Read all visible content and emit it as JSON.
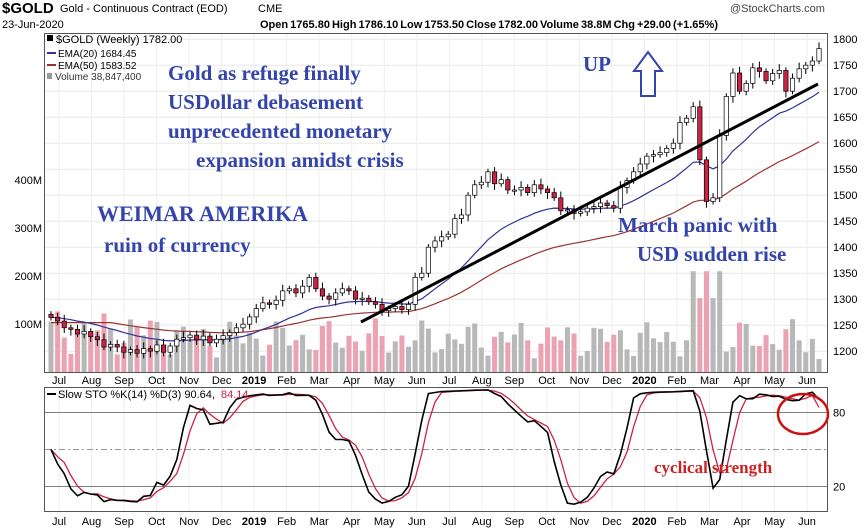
{
  "header": {
    "symbol": "$GOLD",
    "contract": "Gold - Continuous Contract (EOD)",
    "exchange": "CME",
    "date": "23-Jun-2020",
    "watermark": "@StockCharts.com",
    "ohlc": "Open 1765.80  High 1786.10  Low 1753.50  Close 1782.00  Volume 38.8M  Chg +29.00 (+1.65%)"
  },
  "legend": {
    "price": "$GOLD (Weekly) 1782.00",
    "ema20": "EMA(20) 1684.45",
    "ema50": "EMA(50) 1583.52",
    "volume": "Volume 38,847,400"
  },
  "stoch_label": {
    "prefix": "Slow STO %K(14) %D(3) 90.64,",
    "d_value": "84.14"
  },
  "annotations": {
    "refuge": [
      "Gold as refuge finally",
      "USDollar debasement",
      "unprecedented monetary",
      "expansion amidst crisis"
    ],
    "weimar": [
      "WEIMAR AMERIKA",
      "ruin of currency"
    ],
    "up": "UP",
    "march": [
      "March panic with",
      "USD sudden rise"
    ],
    "cyclical": "cyclical strength"
  },
  "colors": {
    "up_candle": "#ffffff",
    "down_candle": "#cc2244",
    "ema20": "#333399",
    "ema50": "#993333",
    "volume_up": "#b8b8b8",
    "volume_down": "#eba3b3",
    "annotation": "#3344aa",
    "cyclical": "#cc2222"
  },
  "chart_data": [
    {
      "type": "candlestick",
      "title": "$GOLD (Weekly)",
      "y_ticks": [
        1200,
        1250,
        1300,
        1350,
        1400,
        1450,
        1500,
        1550,
        1600,
        1650,
        1700,
        1750,
        1800
      ],
      "ylim": [
        1160,
        1810
      ],
      "x_labels": [
        "Jul",
        "Aug",
        "Sep",
        "Oct",
        "Nov",
        "Dec",
        "2019",
        "Feb",
        "Mar",
        "Apr",
        "May",
        "Jun",
        "Jul",
        "Aug",
        "Sep",
        "Oct",
        "Nov",
        "Dec",
        "2020",
        "Feb",
        "Mar",
        "Apr",
        "May",
        "Jun"
      ],
      "volume_ticks": [
        "100M",
        "200M",
        "300M",
        "400M"
      ],
      "close": [
        1265,
        1258,
        1245,
        1242,
        1233,
        1238,
        1228,
        1222,
        1208,
        1213,
        1208,
        1198,
        1203,
        1196,
        1205,
        1200,
        1212,
        1198,
        1210,
        1223,
        1226,
        1231,
        1222,
        1229,
        1216,
        1223,
        1230,
        1236,
        1245,
        1252,
        1266,
        1282,
        1293,
        1290,
        1298,
        1316,
        1320,
        1312,
        1325,
        1342,
        1320,
        1306,
        1300,
        1312,
        1320,
        1316,
        1300,
        1302,
        1295,
        1290,
        1278,
        1282,
        1286,
        1280,
        1290,
        1342,
        1350,
        1400,
        1412,
        1420,
        1425,
        1455,
        1462,
        1500,
        1520,
        1525,
        1545,
        1522,
        1530,
        1510,
        1510,
        1515,
        1505,
        1520,
        1512,
        1505,
        1495,
        1470,
        1472,
        1465,
        1468,
        1475,
        1478,
        1485,
        1480,
        1475,
        1515,
        1528,
        1545,
        1560,
        1575,
        1578,
        1582,
        1590,
        1600,
        1640,
        1648,
        1670,
        1568,
        1488,
        1495,
        1615,
        1690,
        1735,
        1700,
        1715,
        1745,
        1738,
        1720,
        1734,
        1740,
        1700,
        1725,
        1743,
        1750,
        1758,
        1782
      ],
      "ema20_last": 1684.45,
      "ema50_last": 1583.52,
      "volume_m_last": 38.8
    },
    {
      "type": "line",
      "title": "Slow STO %K(14) %D(3)",
      "y_ticks": [
        20,
        80
      ],
      "ylim": [
        0,
        100
      ],
      "series": [
        {
          "name": "%K",
          "last": 90.64
        },
        {
          "name": "%D",
          "last": 84.14
        }
      ]
    }
  ]
}
